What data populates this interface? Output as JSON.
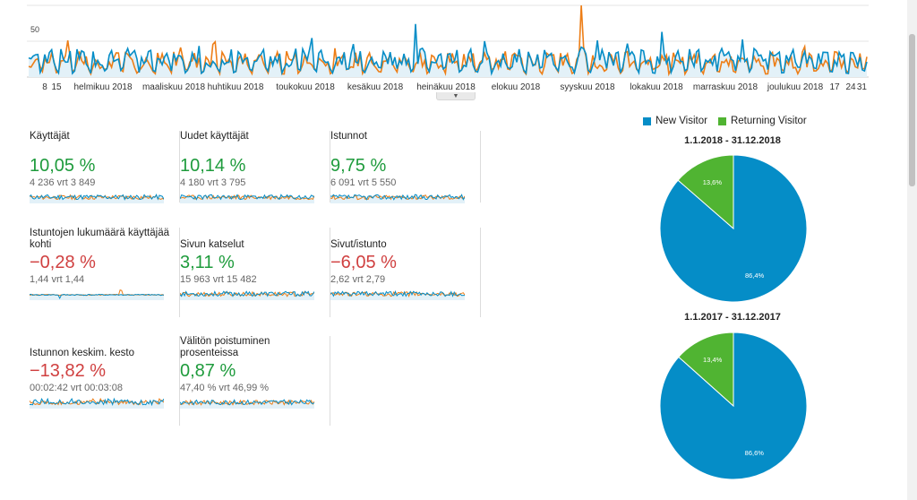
{
  "main_chart": {
    "y_label": "50",
    "x_labels": [
      "8",
      "15",
      "helmikuu 2018",
      "maaliskuu 2018",
      "huhtikuu 2018",
      "toukokuu 2018",
      "kesäkuu 2018",
      "heinäkuu 2018",
      "elokuu 2018",
      "syyskuu 2018",
      "lokakuu 2018",
      "marraskuu 2018",
      "joulukuu 2018",
      "17",
      "24",
      "31"
    ],
    "series_colors": {
      "current": "#058dc7",
      "previous": "#ed7e17"
    }
  },
  "metrics": [
    {
      "label": "Käyttäjät",
      "change": "10,05 %",
      "compare": "4 236 vrt 3 849",
      "trend": "positive"
    },
    {
      "label": "Uudet käyttäjät",
      "change": "10,14 %",
      "compare": "4 180 vrt 3 795",
      "trend": "positive"
    },
    {
      "label": "Istunnot",
      "change": "9,75 %",
      "compare": "6 091 vrt 5 550",
      "trend": "positive"
    },
    {
      "label": "Istuntojen lukumäärä käyttäjää kohti",
      "change": "−0,28 %",
      "compare": "1,44 vrt 1,44",
      "trend": "negative"
    },
    {
      "label": "Sivun katselut",
      "change": "3,11 %",
      "compare": "15 963 vrt 15 482",
      "trend": "positive"
    },
    {
      "label": "Sivut/istunto",
      "change": "−6,05 %",
      "compare": "2,62 vrt 2,79",
      "trend": "negative"
    },
    {
      "label": "Istunnon keskim. kesto",
      "change": "−13,82 %",
      "compare": "00:02:42 vrt 00:03:08",
      "trend": "negative"
    },
    {
      "label": "Välitön poistuminen prosenteissa",
      "change": "0,87 %",
      "compare": "47,40 % vrt 46,99 %",
      "trend": "positive"
    }
  ],
  "legend": {
    "new_visitor": "New Visitor",
    "returning_visitor": "Returning Visitor",
    "new_color": "#058dc7",
    "returning_color": "#50b432"
  },
  "pies": [
    {
      "title": "1.1.2018 - 31.12.2018",
      "new_pct": 86.4,
      "returning_pct": 13.6,
      "new_label": "86,4%",
      "returning_label": "13,6%"
    },
    {
      "title": "1.1.2017 - 31.12.2017",
      "new_pct": 86.6,
      "returning_pct": 13.4,
      "new_label": "86,6%",
      "returning_label": "13,4%"
    }
  ],
  "icons": {
    "collapse": "chevron-down-icon"
  }
}
